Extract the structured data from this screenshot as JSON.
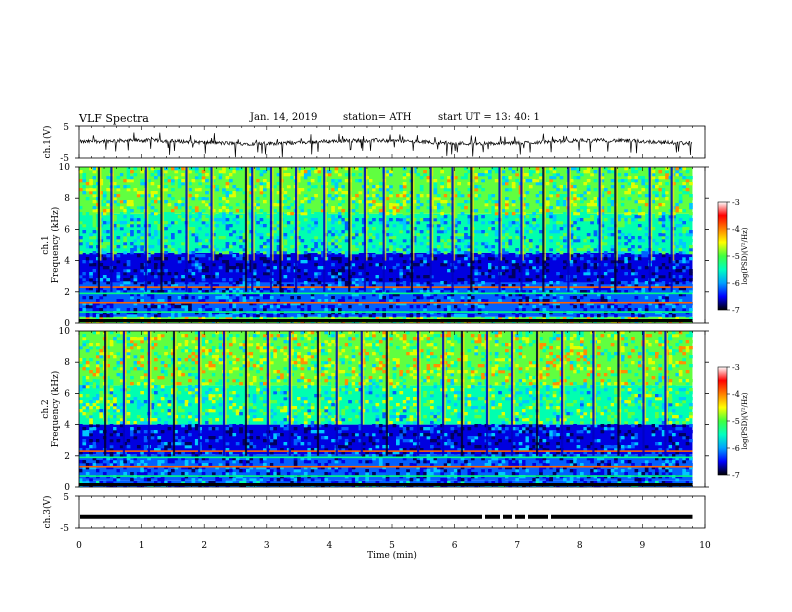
{
  "header": {
    "title": "VLF  Spectra",
    "date": "Jan. 14, 2019",
    "station": "station= ATH",
    "start": "start  UT  =   13: 40: 1"
  },
  "chart_data": [
    {
      "type": "line",
      "panel": "ch1-waveform",
      "ylabel": "ch.1(V)",
      "ylim": [
        -5,
        5
      ],
      "yticks": [
        "5",
        "-5"
      ],
      "xlim": [
        0,
        10
      ],
      "series": [
        {
          "values_summary": "noisy trace near 0 V with frequent downward spikes, ending at about 9.8 min"
        }
      ]
    },
    {
      "type": "heatmap",
      "panel": "ch1-spectrogram",
      "ylabel": "ch.1\nFrequency  (kHz)",
      "ylabel_lines": [
        "ch.1",
        "Frequency  (kHz)"
      ],
      "ylim": [
        0,
        10
      ],
      "yticks": [
        "0",
        "2",
        "4",
        "6",
        "8",
        "10"
      ],
      "xlim": [
        0,
        9.8
      ],
      "colorbar": {
        "label": "log(PSD)(V²/Hz)",
        "range": [
          -7,
          -3
        ],
        "ticks": [
          "-3",
          "-4",
          "-5",
          "-6",
          "-7"
        ]
      },
      "bands_log_psd": [
        {
          "from_khz": 0,
          "to_khz": 0.4,
          "level": -4.5
        },
        {
          "from_khz": 0.4,
          "to_khz": 2.6,
          "level": -6.0
        },
        {
          "from_khz": 2.6,
          "to_khz": 4.5,
          "level": -6.2
        },
        {
          "from_khz": 4.5,
          "to_khz": 7.0,
          "level": -5.2
        },
        {
          "from_khz": 7.0,
          "to_khz": 10.0,
          "level": -4.7
        }
      ],
      "spheric_times_min": [
        0.3,
        0.5,
        1.05,
        1.3,
        1.7,
        2.1,
        2.65,
        2.75,
        3.05,
        3.2,
        3.45,
        3.9,
        4.3,
        4.55,
        4.85,
        5.3,
        5.6,
        5.95,
        6.25,
        6.7,
        7.05,
        7.4,
        7.8,
        8.3,
        8.55,
        9.1,
        9.45
      ]
    },
    {
      "type": "heatmap",
      "panel": "ch2-spectrogram",
      "ylabel": "ch.2\nFrequency  (kHz)",
      "ylabel_lines": [
        "ch.2",
        "Frequency  (kHz)"
      ],
      "ylim": [
        0,
        10
      ],
      "yticks": [
        "0",
        "2",
        "4",
        "6",
        "8",
        "10"
      ],
      "xlim": [
        0,
        9.8
      ],
      "colorbar": {
        "label": "log(PSD)(V²/Hz)",
        "range": [
          -7,
          -3
        ],
        "ticks": [
          "-3",
          "-4",
          "-5",
          "-6",
          "-7"
        ]
      },
      "bands_log_psd": [
        {
          "from_khz": 0,
          "to_khz": 0.4,
          "level": -5.8
        },
        {
          "from_khz": 0.4,
          "to_khz": 2.1,
          "level": -6.0
        },
        {
          "from_khz": 2.1,
          "to_khz": 4.0,
          "level": -6.1
        },
        {
          "from_khz": 4.0,
          "to_khz": 6.5,
          "level": -4.9
        },
        {
          "from_khz": 6.5,
          "to_khz": 10.0,
          "level": -4.5
        }
      ],
      "spheric_times_min": [
        0.4,
        0.7,
        1.1,
        1.5,
        1.9,
        2.3,
        2.65,
        3.0,
        3.35,
        3.8,
        4.1,
        4.5,
        4.9,
        5.4,
        5.8,
        6.1,
        6.5,
        6.9,
        7.3,
        7.7,
        8.2,
        8.6,
        9.0,
        9.35
      ]
    },
    {
      "type": "line",
      "panel": "ch3-waveform",
      "ylabel": "ch.3(V)",
      "ylim": [
        -5,
        5
      ],
      "yticks": [
        "5",
        "-5"
      ],
      "xlim": [
        0,
        10
      ],
      "series": [
        {
          "values_summary": "thick flat trace at about -1.5 V from 0 to 9.8 min"
        }
      ]
    }
  ],
  "xaxis": {
    "label": "Time  (min)",
    "ticks": [
      "0",
      "1",
      "2",
      "3",
      "4",
      "5",
      "6",
      "7",
      "8",
      "9",
      "10"
    ],
    "range": [
      0,
      10
    ]
  },
  "colors": {
    "colormap": [
      "#000000",
      "#0000ff",
      "#00c8ff",
      "#00ff80",
      "#ffff00",
      "#ff8000",
      "#ff0000",
      "#ffffff"
    ]
  }
}
